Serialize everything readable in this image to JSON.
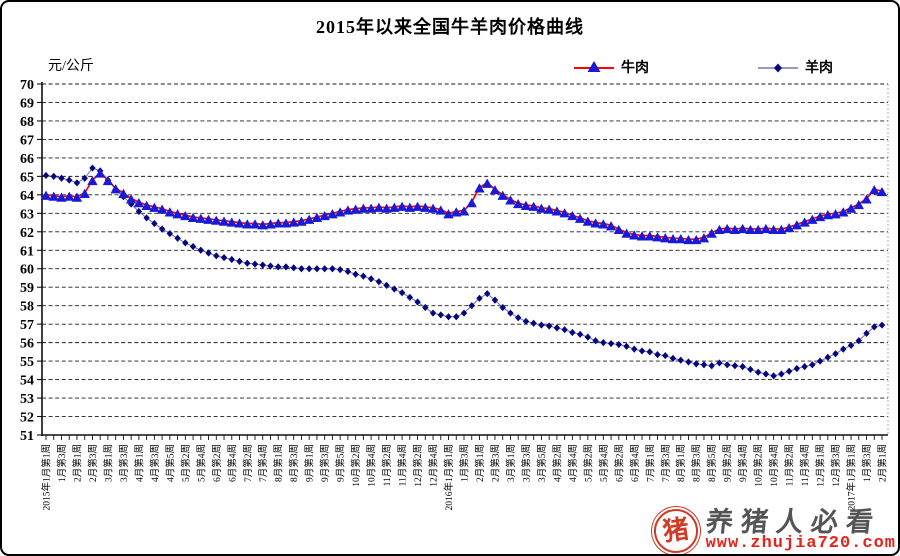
{
  "title": "2015年以来全国牛羊肉价格曲线",
  "y_axis_unit": "元/公斤",
  "watermark": {
    "seal_char": "猪",
    "slogan": "养猪人必看",
    "url": "www.zhujia720.com"
  },
  "chart_data": {
    "type": "line",
    "title": "2015年以来全国牛羊肉价格曲线",
    "xlabel": "",
    "ylabel": "元/公斤",
    "ylim": [
      51,
      70
    ],
    "y_tick_step": 1,
    "grid": true,
    "legend_position": "top",
    "x_points_per_label": 2,
    "x_tick_labels": [
      "2015年1月第1周",
      "1月第3周",
      "2月第1周",
      "2月第3周",
      "3月第1周",
      "3月第3周",
      "4月第1周",
      "4月第3周",
      "4月第5周",
      "5月第2周",
      "5月第4周",
      "6月第2周",
      "6月第4周",
      "7月第2周",
      "7月第4周",
      "8月第1周",
      "8月第3周",
      "9月第1周",
      "9月第3周",
      "9月第5周",
      "10月第2周",
      "10月第4周",
      "11月第2周",
      "11月第4周",
      "12月第2周",
      "12月第4周",
      "2016年1月第1周",
      "1月第3周",
      "2月第1周",
      "2月第3周",
      "3月第1周",
      "3月第3周",
      "3月第5周",
      "4月第2周",
      "4月第4周",
      "5月第2周",
      "5月第4周",
      "6月第2周",
      "6月第4周",
      "7月第1周",
      "7月第3周",
      "8月第1周",
      "8月第3周",
      "8月第5周",
      "9月第2周",
      "9月第4周",
      "10月第2周",
      "10月第4周",
      "11月第2周",
      "11月第4周",
      "12月第1周",
      "12月第3周",
      "2017年1月第1周",
      "1月第3周",
      "2月第1周"
    ],
    "series": [
      {
        "name": "牛肉",
        "line_color": "#ff0000",
        "marker": "triangle",
        "marker_color": "#1a1ad6",
        "values": [
          64.0,
          63.95,
          63.9,
          63.95,
          63.9,
          64.1,
          64.8,
          65.2,
          64.8,
          64.35,
          64.1,
          63.8,
          63.6,
          63.45,
          63.35,
          63.25,
          63.1,
          63.0,
          62.9,
          62.8,
          62.75,
          62.7,
          62.65,
          62.6,
          62.55,
          62.5,
          62.45,
          62.45,
          62.4,
          62.45,
          62.5,
          62.5,
          62.55,
          62.6,
          62.7,
          62.8,
          62.9,
          63.0,
          63.1,
          63.2,
          63.25,
          63.3,
          63.3,
          63.35,
          63.3,
          63.35,
          63.4,
          63.35,
          63.4,
          63.35,
          63.3,
          63.2,
          63.0,
          63.1,
          63.15,
          63.6,
          64.4,
          64.65,
          64.3,
          64.0,
          63.75,
          63.55,
          63.45,
          63.4,
          63.3,
          63.25,
          63.15,
          63.05,
          62.9,
          62.75,
          62.6,
          62.5,
          62.45,
          62.35,
          62.15,
          61.95,
          61.85,
          61.8,
          61.8,
          61.75,
          61.7,
          61.65,
          61.65,
          61.6,
          61.6,
          61.7,
          61.95,
          62.15,
          62.2,
          62.15,
          62.2,
          62.15,
          62.15,
          62.2,
          62.15,
          62.15,
          62.25,
          62.4,
          62.55,
          62.7,
          62.85,
          62.95,
          63.0,
          63.1,
          63.3,
          63.5,
          63.8,
          64.3,
          64.2
        ]
      },
      {
        "name": "羊肉",
        "line_color": "#7878b0",
        "marker": "diamond",
        "marker_color": "#050580",
        "values": [
          65.05,
          65.0,
          64.9,
          64.8,
          64.65,
          64.9,
          65.45,
          65.3,
          64.8,
          64.3,
          63.9,
          63.5,
          63.1,
          62.75,
          62.45,
          62.15,
          61.9,
          61.65,
          61.4,
          61.2,
          61.0,
          60.85,
          60.7,
          60.6,
          60.5,
          60.4,
          60.3,
          60.25,
          60.2,
          60.15,
          60.1,
          60.1,
          60.05,
          60.0,
          60.0,
          60.0,
          60.0,
          60.0,
          59.95,
          59.85,
          59.7,
          59.6,
          59.45,
          59.3,
          59.1,
          58.9,
          58.7,
          58.45,
          58.2,
          57.9,
          57.6,
          57.5,
          57.4,
          57.4,
          57.6,
          58.0,
          58.4,
          58.65,
          58.3,
          57.9,
          57.6,
          57.35,
          57.15,
          57.05,
          56.95,
          56.9,
          56.8,
          56.7,
          56.55,
          56.45,
          56.3,
          56.1,
          56.0,
          55.95,
          55.9,
          55.8,
          55.65,
          55.55,
          55.5,
          55.35,
          55.3,
          55.15,
          55.05,
          54.95,
          54.85,
          54.8,
          54.75,
          54.9,
          54.8,
          54.75,
          54.7,
          54.55,
          54.4,
          54.3,
          54.2,
          54.3,
          54.45,
          54.6,
          54.7,
          54.8,
          55.0,
          55.2,
          55.4,
          55.65,
          55.85,
          56.1,
          56.5,
          56.85,
          56.95
        ]
      }
    ]
  }
}
